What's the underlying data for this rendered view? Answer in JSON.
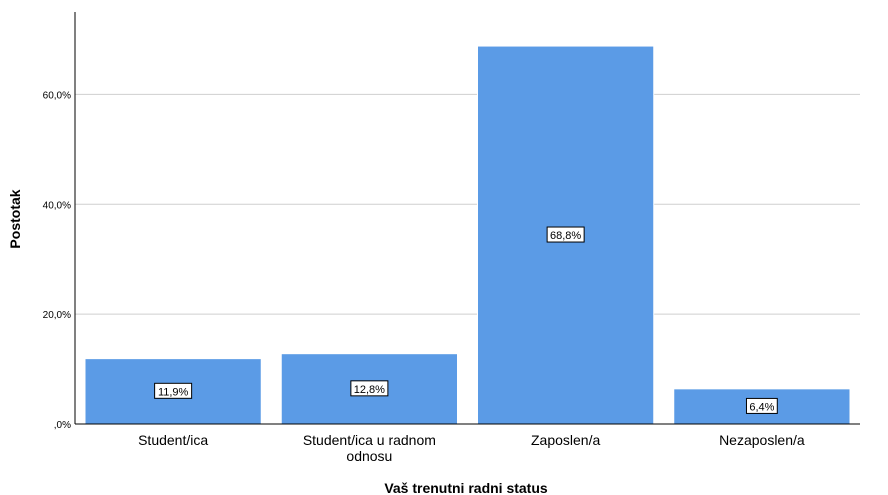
{
  "chart_data": {
    "type": "bar",
    "categories": [
      "Student/ica",
      "Student/ica u radnom odnosu",
      "Zaposlen/a",
      "Nezaposlen/a"
    ],
    "category_lines": [
      [
        "Student/ica"
      ],
      [
        "Student/ica u radnom",
        "odnosu"
      ],
      [
        "Zaposlen/a"
      ],
      [
        "Nezaposlen/a"
      ]
    ],
    "values": [
      11.9,
      12.8,
      68.8,
      6.4
    ],
    "data_labels": [
      "11,9%",
      "12,8%",
      "68,8%",
      "6,4%"
    ],
    "xlabel": "Vaš trenutni radni status",
    "ylabel": "Postotak",
    "ylim": [
      0,
      75
    ],
    "yticks": [
      0,
      20,
      40,
      60
    ],
    "ytick_labels": [
      ",0%",
      "20,0%",
      "40,0%",
      "60,0%"
    ],
    "grid": true,
    "bar_color": "#5b9be6",
    "bar_edge_color": "#ffffff",
    "grid_color": "#cfcfcf"
  }
}
